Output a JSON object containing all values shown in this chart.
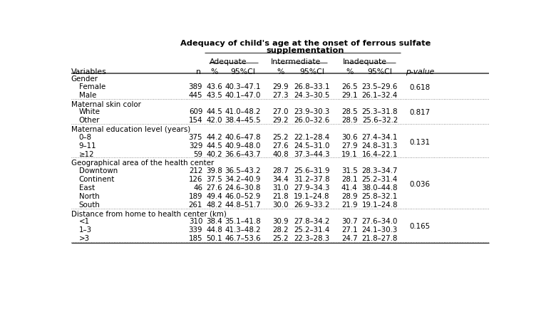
{
  "title_line1": "Adequacy of child's age at the onset of ferrous sulfate",
  "title_line2": "supplementation",
  "sections": [
    {
      "header": "Gender",
      "rows": [
        [
          "Female",
          "389",
          "43.6",
          "40.3–47.1",
          "29.9",
          "26.8–33.1",
          "26.5",
          "23.5–29.6",
          "0.618"
        ],
        [
          "Male",
          "445",
          "43.5",
          "40.1–47.0",
          "27.3",
          "24.3–30.5",
          "29.1",
          "26.1–32.4",
          ""
        ]
      ]
    },
    {
      "header": "Maternal skin color",
      "rows": [
        [
          "White",
          "609",
          "44.5",
          "41.0–48.2",
          "27.0",
          "23.9–30.3",
          "28.5",
          "25.3–31.8",
          "0.817"
        ],
        [
          "Other",
          "154",
          "42.0",
          "38.4–45.5",
          "29.2",
          "26.0–32.6",
          "28.9",
          "25.6–32.2",
          ""
        ]
      ]
    },
    {
      "header": "Maternal education level (years)",
      "rows": [
        [
          "0–8",
          "375",
          "44.2",
          "40.6–47.8",
          "25.2",
          "22.1–28.4",
          "30.6",
          "27.4–34.1",
          "0.131"
        ],
        [
          "9–11",
          "329",
          "44.5",
          "40.9–48.0",
          "27.6",
          "24.5–31.0",
          "27.9",
          "24.8–31.3",
          ""
        ],
        [
          "≥12",
          "59",
          "40.2",
          "36.6–43.7",
          "40.8",
          "37.3–44.3",
          "19.1",
          "16.4–22.1",
          ""
        ]
      ]
    },
    {
      "header": "Geographical area of the health center",
      "rows": [
        [
          "Downtown",
          "212",
          "39.8",
          "36.5–43.2",
          "28.7",
          "25.6–31.9",
          "31.5",
          "28.3–34.7",
          "0.036"
        ],
        [
          "Continent",
          "126",
          "37.5",
          "34.2–40.9",
          "34.4",
          "31.2–37.8",
          "28.1",
          "25.2–31.4",
          ""
        ],
        [
          "East",
          "46",
          "27.6",
          "24.6–30.8",
          "31.0",
          "27.9–34.3",
          "41.4",
          "38.0–44.8",
          ""
        ],
        [
          "North",
          "189",
          "49.4",
          "46.0–52.9",
          "21.8",
          "19.1–24.8",
          "28.9",
          "25.8–32.1",
          ""
        ],
        [
          "South",
          "261",
          "48.2",
          "44.8–51.7",
          "30.0",
          "26.9–33.2",
          "21.9",
          "19.1–24.8",
          ""
        ]
      ]
    },
    {
      "header": "Distance from home to health center (km)",
      "rows": [
        [
          "<1",
          "310",
          "38.4",
          "35.1–41.8",
          "30.9",
          "27.8–34.2",
          "30.7",
          "27.6–34.0",
          "0.165"
        ],
        [
          "1–3",
          "339",
          "44.8",
          "41.3–48.2",
          "28.2",
          "25.2–31.4",
          "27.1",
          "24.1–30.3",
          ""
        ],
        [
          ">3",
          "185",
          "50.1",
          "46.7–53.6",
          "25.2",
          "22.3–28.3",
          "24.7",
          "21.8–27.8",
          ""
        ]
      ]
    }
  ],
  "bg_color": "#ffffff",
  "text_color": "#000000"
}
